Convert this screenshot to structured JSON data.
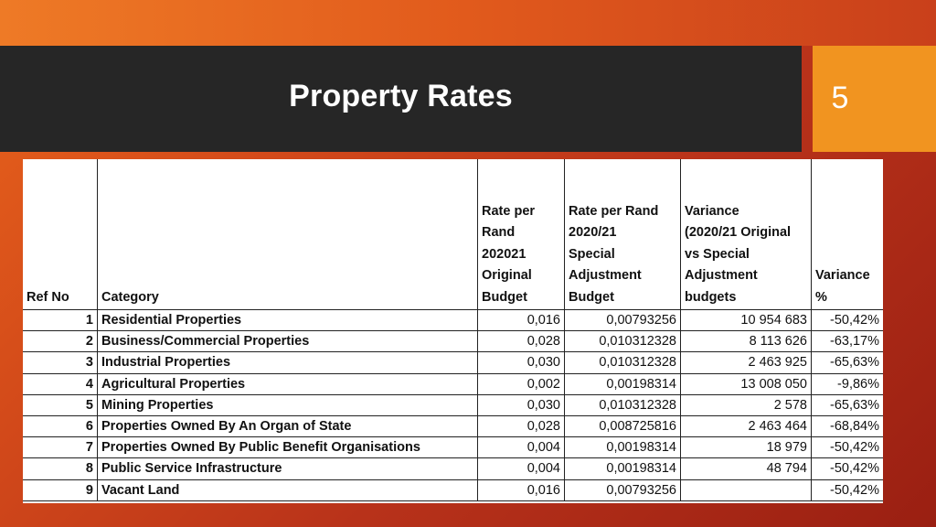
{
  "slide": {
    "title": "Property Rates",
    "page_number": "5",
    "colors": {
      "title_bar": "#262626",
      "page_box": "#f19420",
      "background": "#d2491a"
    }
  },
  "table": {
    "headers": {
      "ref": [
        "Ref No"
      ],
      "category": [
        "Category"
      ],
      "rate_original": [
        "Rate per",
        "Rand",
        "202021",
        "Original",
        "Budget"
      ],
      "rate_special": [
        "Rate per Rand",
        "2020/21",
        "Special",
        "Adjustment",
        "Budget"
      ],
      "variance": [
        "Variance",
        "(2020/21 Original",
        "vs Special",
        "Adjustment",
        "budgets"
      ],
      "variance_pct": [
        "Variance",
        "%"
      ]
    },
    "rows": [
      {
        "ref": "1",
        "category": "Residential Properties",
        "rate_original": "0,016",
        "rate_special": "0,00793256",
        "variance": "10 954 683",
        "variance_pct": "-50,42%"
      },
      {
        "ref": "2",
        "category": "Business/Commercial Properties",
        "rate_original": "0,028",
        "rate_special": "0,010312328",
        "variance": "8 113 626",
        "variance_pct": "-63,17%"
      },
      {
        "ref": "3",
        "category": "Industrial Properties",
        "rate_original": "0,030",
        "rate_special": "0,010312328",
        "variance": "2 463 925",
        "variance_pct": "-65,63%"
      },
      {
        "ref": "4",
        "category": "Agricultural Properties",
        "rate_original": "0,002",
        "rate_special": "0,00198314",
        "variance": "13 008 050",
        "variance_pct": "-9,86%"
      },
      {
        "ref": "5",
        "category": "Mining Properties",
        "rate_original": "0,030",
        "rate_special": "0,010312328",
        "variance": "2 578",
        "variance_pct": "-65,63%"
      },
      {
        "ref": "6",
        "category": "Properties Owned By An Organ of State",
        "rate_original": "0,028",
        "rate_special": "0,008725816",
        "variance": "2 463 464",
        "variance_pct": "-68,84%"
      },
      {
        "ref": "7",
        "category": "Properties Owned By Public Benefit Organisations",
        "rate_original": "0,004",
        "rate_special": "0,00198314",
        "variance": "18 979",
        "variance_pct": "-50,42%"
      },
      {
        "ref": "8",
        "category": "Public Service Infrastructure",
        "rate_original": "0,004",
        "rate_special": "0,00198314",
        "variance": "48 794",
        "variance_pct": "-50,42%"
      },
      {
        "ref": "9",
        "category": "Vacant Land",
        "rate_original": "0,016",
        "rate_special": "0,00793256",
        "variance": "",
        "variance_pct": "-50,42%"
      }
    ]
  }
}
